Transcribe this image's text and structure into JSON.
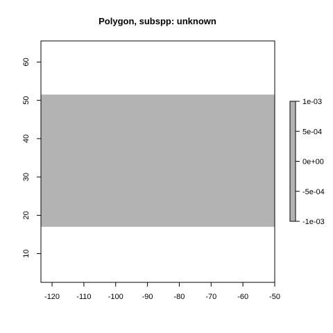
{
  "chart_data": {
    "type": "heatmap",
    "title": "Polygon, subspp: unknown",
    "xlabel": "",
    "ylabel": "",
    "xlim": [
      -123.5,
      -50
    ],
    "ylim": [
      2.5,
      65.5
    ],
    "x_ticks": [
      -120,
      -110,
      -100,
      -90,
      -80,
      -70,
      -60,
      -50
    ],
    "y_ticks": [
      10,
      20,
      30,
      40,
      50,
      60
    ],
    "polygon": {
      "x_range": [
        -123.5,
        -50
      ],
      "y_range": [
        17,
        51.5
      ],
      "fill": "#b3b3b3"
    },
    "legend": {
      "position": "right",
      "tick_labels": [
        "1e-03",
        "5e-04",
        "0e+00",
        "-5e-04",
        "-1e-03"
      ],
      "range": [
        -0.001,
        0.001
      ],
      "fill": "#b3b3b3"
    },
    "grid": false
  }
}
